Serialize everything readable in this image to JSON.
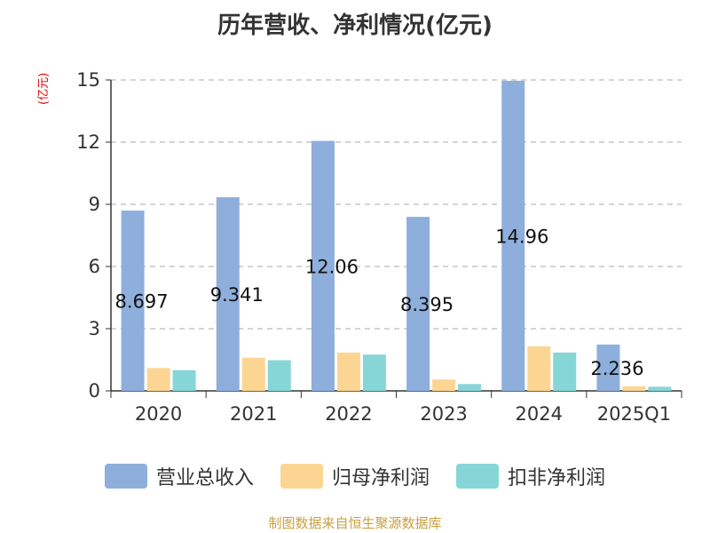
{
  "title": "历年营收、净利情况(亿元)",
  "unit_label": "(亿元)",
  "source": "制图数据来自恒生聚源数据库",
  "colors": {
    "revenue": "#8eaedc",
    "net_profit": "#fdd592",
    "deducted_net_profit": "#86d6d8",
    "grid": "#bbbbbb",
    "axis": "#333333"
  },
  "chart_data": {
    "type": "bar",
    "title": "历年营收、净利情况(亿元)",
    "ylabel": "(亿元)",
    "xlabel": "",
    "ylim": [
      0,
      15
    ],
    "yticks": [
      0,
      3,
      6,
      9,
      12,
      15
    ],
    "grid": true,
    "legend_position": "bottom",
    "categories": [
      "2020",
      "2021",
      "2022",
      "2023",
      "2024",
      "2025Q1"
    ],
    "series": [
      {
        "name": "营业总收入",
        "values": [
          8.697,
          9.341,
          12.06,
          8.395,
          14.96,
          2.236
        ],
        "labels": [
          "8.697",
          "9.341",
          "12.06",
          "8.395",
          "14.96",
          "2.236"
        ]
      },
      {
        "name": "归母净利润",
        "values": [
          1.1,
          1.6,
          1.85,
          0.55,
          2.15,
          0.22
        ]
      },
      {
        "name": "扣非净利润",
        "values": [
          1.0,
          1.48,
          1.75,
          0.33,
          1.85,
          0.2
        ]
      }
    ]
  }
}
